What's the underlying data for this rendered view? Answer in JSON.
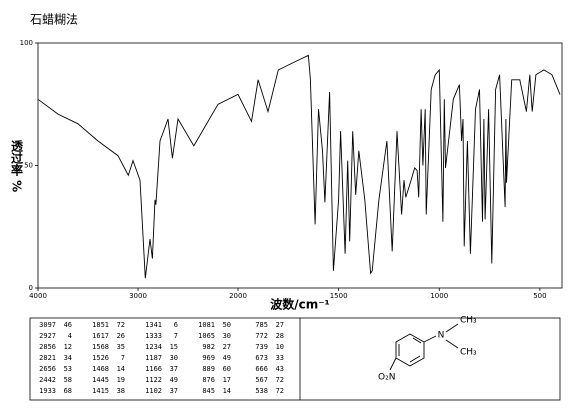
{
  "chart_data": {
    "type": "line",
    "title": "石蜡糊法",
    "y_label": "透过率 %",
    "x_label": "波数/cm⁻¹",
    "color": "#000000",
    "xlim": [
      4000,
      400
    ],
    "x_scale_change": 2000,
    "ylim": [
      0,
      100
    ],
    "xticks": [
      4000,
      3000,
      2000,
      1500,
      1000,
      500
    ],
    "yticks": [
      0,
      50,
      100
    ],
    "grid": false,
    "x": [
      4000,
      3800,
      3600,
      3400,
      3200,
      3097,
      3050,
      2980,
      2927,
      2880,
      2856,
      2830,
      2821,
      2780,
      2700,
      2656,
      2600,
      2442,
      2200,
      2000,
      1933,
      1900,
      1851,
      1800,
      1700,
      1650,
      1640,
      1617,
      1600,
      1580,
      1568,
      1545,
      1526,
      1500,
      1490,
      1468,
      1455,
      1445,
      1430,
      1415,
      1400,
      1370,
      1341,
      1333,
      1300,
      1260,
      1234,
      1210,
      1187,
      1175,
      1166,
      1140,
      1122,
      1110,
      1102,
      1090,
      1081,
      1070,
      1065,
      1040,
      1020,
      1000,
      982,
      975,
      969,
      930,
      900,
      889,
      882,
      876,
      860,
      845,
      820,
      800,
      785,
      778,
      772,
      755,
      739,
      720,
      700,
      673,
      669,
      666,
      640,
      600,
      567,
      550,
      538,
      520,
      480,
      440,
      400
    ],
    "values": [
      77,
      71,
      67,
      60,
      54,
      46,
      52,
      44,
      4,
      20,
      12,
      36,
      34,
      60,
      69,
      53,
      69,
      58,
      75,
      79,
      68,
      85,
      72,
      89,
      93,
      95,
      85,
      26,
      73,
      56,
      35,
      80,
      7,
      36,
      64,
      14,
      52,
      19,
      64,
      38,
      56,
      36,
      6,
      7,
      36,
      60,
      15,
      64,
      30,
      44,
      37,
      44,
      49,
      48,
      37,
      73,
      50,
      73,
      30,
      81,
      87,
      89,
      27,
      77,
      49,
      77,
      83,
      60,
      69,
      17,
      60,
      14,
      73,
      81,
      27,
      69,
      28,
      73,
      10,
      81,
      87,
      33,
      69,
      43,
      85,
      85,
      72,
      87,
      72,
      87,
      89,
      87,
      79
    ]
  },
  "peak_table": {
    "columns": [
      [
        [
          3097,
          46
        ],
        [
          2927,
          4
        ],
        [
          2856,
          12
        ],
        [
          2821,
          34
        ],
        [
          2656,
          53
        ],
        [
          2442,
          58
        ],
        [
          1933,
          68
        ]
      ],
      [
        [
          1851,
          72
        ],
        [
          1617,
          26
        ],
        [
          1568,
          35
        ],
        [
          1526,
          7
        ],
        [
          1468,
          14
        ],
        [
          1445,
          19
        ],
        [
          1415,
          38
        ]
      ],
      [
        [
          1341,
          6
        ],
        [
          1333,
          7
        ],
        [
          1234,
          15
        ],
        [
          1187,
          30
        ],
        [
          1166,
          37
        ],
        [
          1122,
          49
        ],
        [
          1102,
          37
        ]
      ],
      [
        [
          1081,
          50
        ],
        [
          1065,
          30
        ],
        [
          982,
          27
        ],
        [
          969,
          49
        ],
        [
          889,
          60
        ],
        [
          876,
          17
        ],
        [
          845,
          14
        ]
      ],
      [
        [
          785,
          27
        ],
        [
          772,
          28
        ],
        [
          739,
          10
        ],
        [
          673,
          33
        ],
        [
          666,
          43
        ],
        [
          567,
          72
        ],
        [
          538,
          72
        ]
      ]
    ]
  },
  "structure": {
    "labels": [
      "N",
      "CH₃",
      "CH₃",
      "O₂N"
    ]
  }
}
